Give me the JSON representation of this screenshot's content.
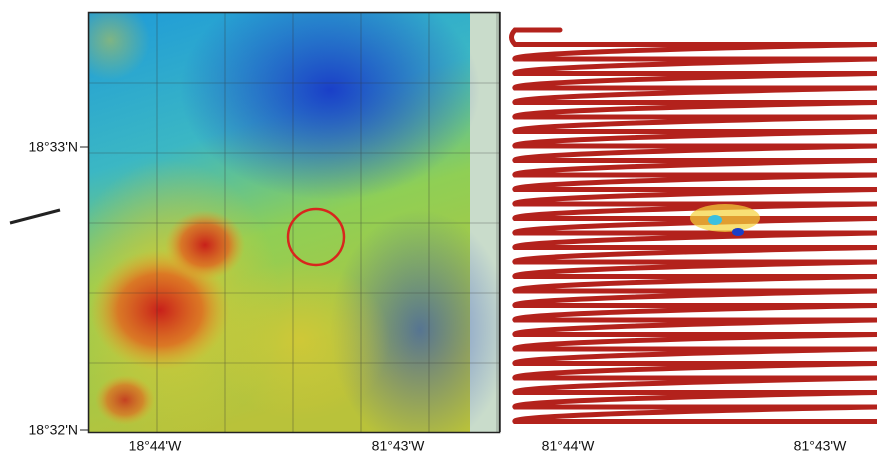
{
  "left_panel": {
    "y_labels": [
      "18°33'N",
      "18°32'N"
    ],
    "x_labels": [
      "18°44'W",
      "81°43'W"
    ]
  },
  "right_panel": {
    "x_labels": [
      "81°44'W",
      "81°43'W"
    ]
  }
}
